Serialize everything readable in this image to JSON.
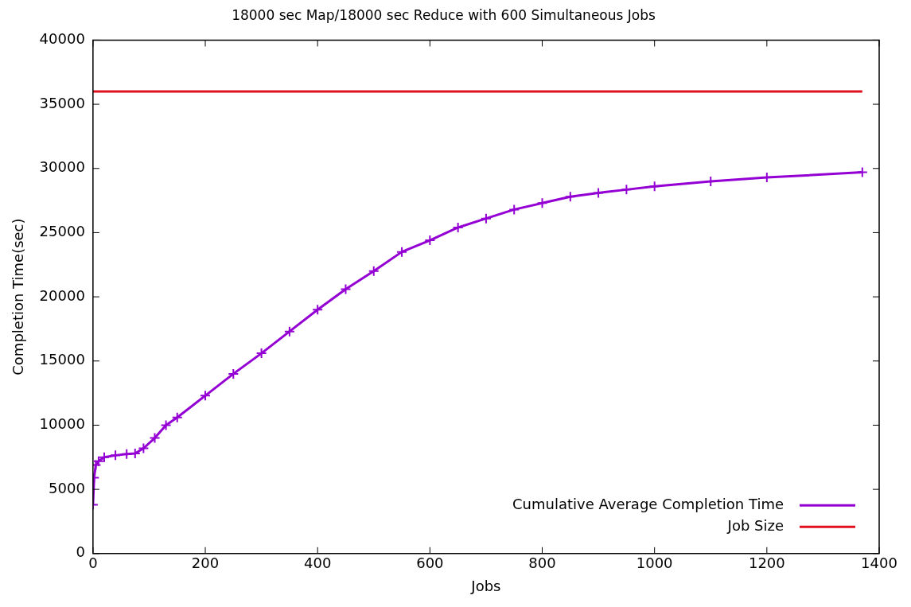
{
  "chart_data": {
    "type": "line",
    "title": "18000 sec Map/18000 sec Reduce with 600 Simultaneous Jobs",
    "xlabel": "Jobs",
    "ylabel": "Completion Time(sec)",
    "xlim": [
      0,
      1400
    ],
    "xticks": [
      0,
      200,
      400,
      600,
      800,
      1000,
      1200,
      1400
    ],
    "ylim": [
      0,
      40000
    ],
    "yticks": [
      0,
      5000,
      10000,
      15000,
      20000,
      25000,
      30000,
      35000,
      40000
    ],
    "grid": false,
    "legend": "bottom right",
    "series": [
      {
        "name": "Cumulative Average Completion Time",
        "color": "#9400d3",
        "marker": "cross",
        "x": [
          0,
          2,
          5,
          10,
          20,
          40,
          60,
          75,
          90,
          110,
          130,
          150,
          200,
          250,
          300,
          350,
          400,
          450,
          500,
          550,
          600,
          650,
          700,
          750,
          800,
          850,
          900,
          950,
          1000,
          1100,
          1200,
          1370
        ],
        "values": [
          3800,
          5900,
          6900,
          7200,
          7500,
          7650,
          7750,
          7800,
          8200,
          9000,
          10000,
          10600,
          12300,
          14000,
          15600,
          17300,
          19000,
          20600,
          22000,
          23500,
          24400,
          25400,
          26100,
          26800,
          27300,
          27800,
          28100,
          28350,
          28600,
          29000,
          29300,
          29700
        ]
      },
      {
        "name": "Job Size",
        "color": "#e0101e",
        "marker": "none",
        "x": [
          0,
          1370
        ],
        "values": [
          36000,
          36000
        ]
      }
    ]
  }
}
